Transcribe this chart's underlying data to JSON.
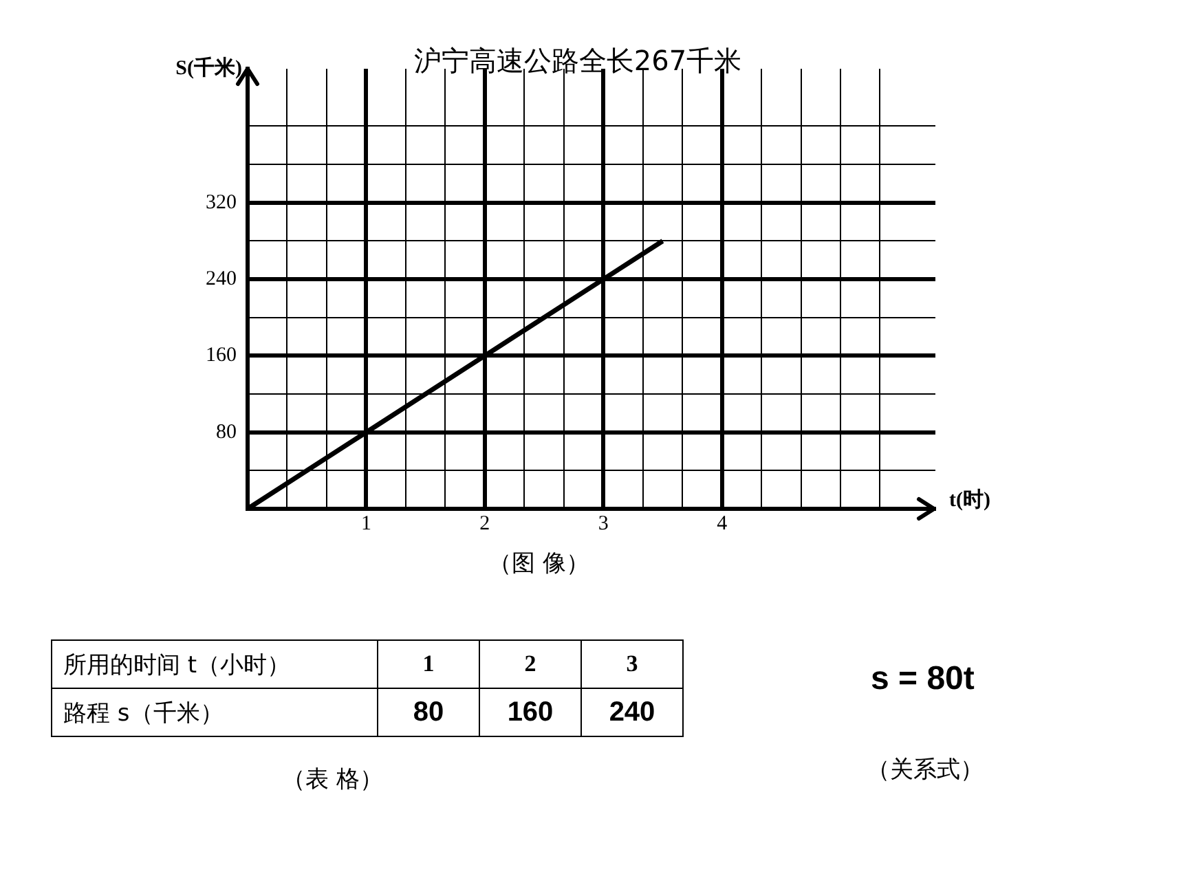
{
  "chart_data": {
    "type": "line",
    "title": "沪宁高速公路全长267千米",
    "xlabel": "t(时)",
    "ylabel": "S(千米)",
    "x": [
      0,
      1,
      2,
      3,
      3.5
    ],
    "series": [
      {
        "color": "#000000",
        "values": [
          0,
          80,
          160,
          240,
          280
        ]
      }
    ],
    "xlim": [
      0,
      5.8
    ],
    "xticks": [
      {
        "value": 0.333,
        "label": null
      },
      {
        "value": 0.667,
        "label": null
      },
      1,
      {
        "value": 1.333,
        "label": null
      },
      {
        "value": 1.667,
        "label": null
      },
      2,
      {
        "value": 2.333,
        "label": null
      },
      {
        "value": 2.667,
        "label": null
      },
      3,
      {
        "value": 3.333,
        "label": null
      },
      {
        "value": 3.667,
        "label": null
      },
      4,
      {
        "value": 4.333,
        "label": null
      },
      {
        "value": 4.667,
        "label": null
      },
      {
        "value": 5,
        "label": null
      },
      {
        "value": 5.333,
        "label": null
      }
    ],
    "ylim": [
      0,
      460
    ],
    "yticks": [
      {
        "value": 40,
        "label": null
      },
      80,
      {
        "value": 120,
        "label": null
      },
      160,
      {
        "value": 200,
        "label": null
      },
      240,
      {
        "value": 280,
        "label": null
      },
      320,
      {
        "value": 360,
        "label": null
      },
      {
        "value": 400,
        "label": null
      }
    ],
    "grid": true,
    "marker": "none",
    "line_style": "solid",
    "annotations": [
      "（图 像）",
      "所用的时间 t（小时）",
      "1",
      "2",
      "3",
      "路程 s（千米）",
      "80",
      "160",
      "240",
      "（表 格）",
      "s =  80t",
      "（关系式）"
    ]
  }
}
